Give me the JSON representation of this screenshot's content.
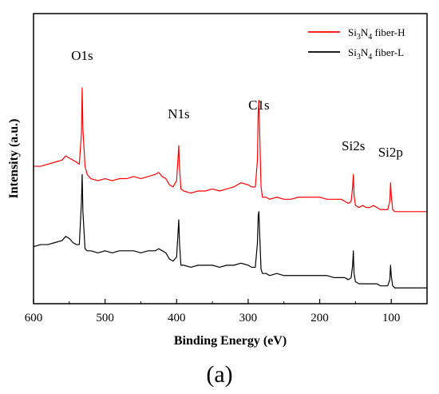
{
  "chart_data": {
    "type": "line",
    "xlabel": "Binding Energy (eV)",
    "ylabel": "Intensity (a.u.)",
    "xlim": [
      600,
      50
    ],
    "x_reversed": true,
    "xticks": [
      600,
      500,
      400,
      300,
      200,
      100
    ],
    "y_ticks_shown": false,
    "panel_label": "(a)",
    "legend": {
      "placement": "top-right",
      "entries": [
        {
          "series": 0,
          "base": "Si",
          "sub1": "3",
          "mid": "N",
          "sub2": "4",
          "suffix": " fiber-H"
        },
        {
          "series": 1,
          "base": "Si",
          "sub1": "3",
          "mid": "N",
          "sub2": "4",
          "suffix": " fiber-L"
        }
      ]
    },
    "annotations": [
      {
        "text": "O1s",
        "x": 532
      },
      {
        "text": "N1s",
        "x": 397
      },
      {
        "text": "C1s",
        "x": 285
      },
      {
        "text": "Si2s",
        "x": 153
      },
      {
        "text": "Si2p",
        "x": 101
      }
    ],
    "series": [
      {
        "color": "#ff0000",
        "x": [
          600,
          590,
          580,
          570,
          560,
          555,
          550,
          545,
          540,
          536,
          533,
          532,
          531,
          528,
          525,
          520,
          510,
          500,
          490,
          480,
          470,
          460,
          450,
          440,
          430,
          425,
          420,
          415,
          410,
          405,
          400,
          398,
          397,
          396,
          394,
          390,
          380,
          370,
          360,
          350,
          340,
          330,
          320,
          310,
          300,
          295,
          290,
          287,
          286,
          285,
          284,
          282,
          280,
          275,
          270,
          260,
          250,
          240,
          230,
          220,
          210,
          200,
          190,
          180,
          170,
          165,
          160,
          156,
          154,
          153,
          152,
          150,
          145,
          140,
          135,
          130,
          125,
          120,
          115,
          110,
          105,
          102,
          101,
          100,
          98,
          95,
          90,
          80,
          70,
          60,
          50
        ],
        "y": [
          0.62,
          0.62,
          0.63,
          0.64,
          0.65,
          0.67,
          0.66,
          0.65,
          0.64,
          0.63,
          0.78,
          1.0,
          0.8,
          0.62,
          0.58,
          0.56,
          0.55,
          0.56,
          0.55,
          0.56,
          0.56,
          0.57,
          0.56,
          0.57,
          0.58,
          0.59,
          0.57,
          0.56,
          0.53,
          0.52,
          0.55,
          0.66,
          0.72,
          0.62,
          0.51,
          0.5,
          0.49,
          0.5,
          0.5,
          0.51,
          0.5,
          0.51,
          0.52,
          0.54,
          0.53,
          0.52,
          0.52,
          0.65,
          0.88,
          0.94,
          0.8,
          0.52,
          0.47,
          0.47,
          0.46,
          0.47,
          0.46,
          0.46,
          0.47,
          0.47,
          0.47,
          0.47,
          0.46,
          0.46,
          0.46,
          0.45,
          0.44,
          0.45,
          0.52,
          0.58,
          0.48,
          0.43,
          0.42,
          0.43,
          0.42,
          0.42,
          0.43,
          0.42,
          0.41,
          0.41,
          0.41,
          0.45,
          0.54,
          0.48,
          0.41,
          0.4,
          0.4,
          0.4,
          0.4,
          0.4,
          0.4
        ]
      },
      {
        "color": "#000000",
        "x": [
          600,
          590,
          580,
          570,
          560,
          555,
          550,
          545,
          540,
          536,
          533,
          532,
          531,
          528,
          525,
          520,
          510,
          500,
          490,
          480,
          470,
          460,
          450,
          440,
          430,
          425,
          420,
          415,
          410,
          405,
          400,
          398,
          397,
          396,
          394,
          390,
          380,
          370,
          360,
          350,
          340,
          330,
          320,
          310,
          300,
          295,
          290,
          287,
          286,
          285,
          284,
          282,
          280,
          275,
          270,
          260,
          250,
          240,
          230,
          220,
          210,
          200,
          190,
          180,
          170,
          165,
          160,
          156,
          154,
          153,
          152,
          150,
          145,
          140,
          135,
          130,
          125,
          120,
          115,
          110,
          105,
          102,
          101,
          100,
          98,
          95,
          90,
          80,
          70,
          60,
          50
        ],
        "y": [
          0.23,
          0.24,
          0.24,
          0.25,
          0.26,
          0.28,
          0.27,
          0.25,
          0.24,
          0.24,
          0.45,
          0.58,
          0.4,
          0.22,
          0.21,
          0.21,
          0.2,
          0.21,
          0.2,
          0.21,
          0.21,
          0.21,
          0.2,
          0.21,
          0.21,
          0.22,
          0.21,
          0.2,
          0.17,
          0.16,
          0.18,
          0.3,
          0.36,
          0.25,
          0.14,
          0.14,
          0.13,
          0.14,
          0.14,
          0.14,
          0.13,
          0.14,
          0.14,
          0.15,
          0.14,
          0.13,
          0.13,
          0.25,
          0.38,
          0.4,
          0.3,
          0.12,
          0.1,
          0.1,
          0.09,
          0.1,
          0.09,
          0.09,
          0.09,
          0.09,
          0.09,
          0.09,
          0.09,
          0.08,
          0.08,
          0.08,
          0.07,
          0.08,
          0.14,
          0.21,
          0.1,
          0.06,
          0.05,
          0.05,
          0.05,
          0.05,
          0.05,
          0.05,
          0.04,
          0.04,
          0.04,
          0.07,
          0.14,
          0.09,
          0.04,
          0.03,
          0.03,
          0.03,
          0.03,
          0.03,
          0.03
        ]
      }
    ]
  }
}
